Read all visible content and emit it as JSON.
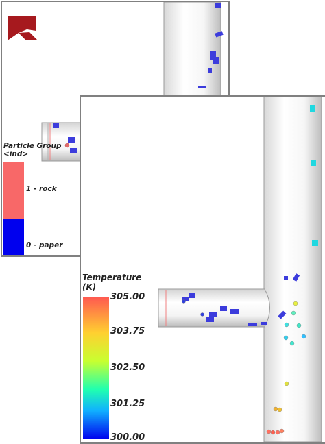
{
  "top_view": {
    "legend": {
      "title_line1": "Particle Group",
      "title_line2": "<ind>",
      "categories": [
        {
          "label": "1 - rock",
          "color": "#f86868"
        },
        {
          "label": "0 - paper",
          "color": "#0000ee"
        }
      ]
    }
  },
  "bottom_view": {
    "legend": {
      "title_line1": "Temperature",
      "title_line2": "(K)",
      "ticks": [
        "305.00",
        "303.75",
        "302.50",
        "301.25",
        "300.00"
      ]
    }
  },
  "colors": {
    "paper": "#3c3cdc",
    "rock": "#e06a6a",
    "logo": "#a6191e",
    "panel_border": "#808080"
  },
  "icons": {
    "logo": "brand-logo-icon"
  }
}
